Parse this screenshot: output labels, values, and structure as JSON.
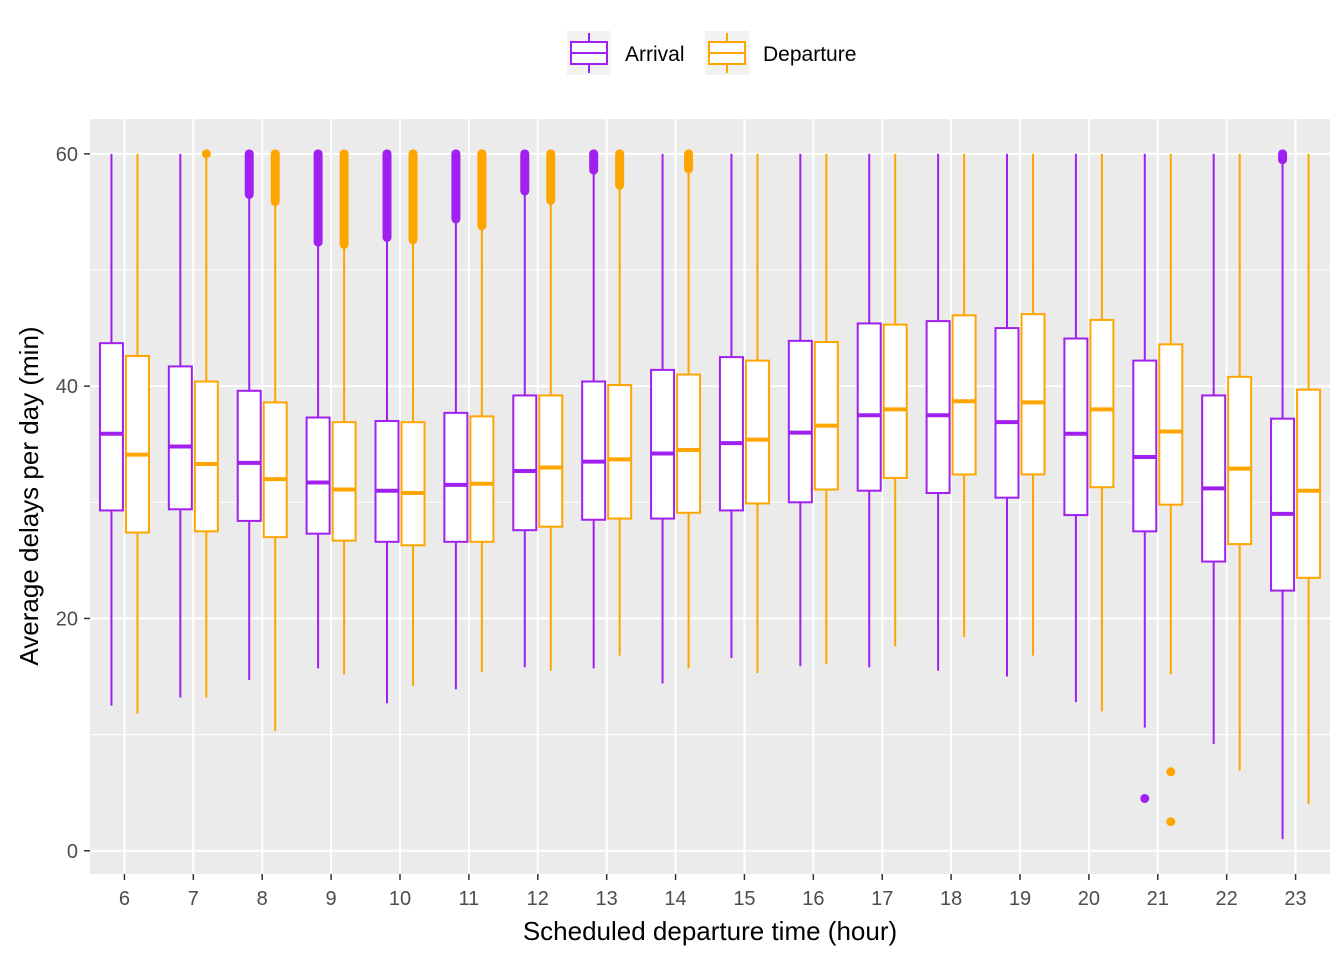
{
  "chart_data": {
    "type": "boxplot",
    "xlabel": "Scheduled departure time (hour)",
    "ylabel": "Average delays per day (min)",
    "ylim": [
      -2,
      63
    ],
    "yticks": [
      0,
      20,
      40,
      60
    ],
    "grid": true,
    "legend_position": "top",
    "categories": [
      "6",
      "7",
      "8",
      "9",
      "10",
      "11",
      "12",
      "13",
      "14",
      "15",
      "16",
      "17",
      "18",
      "19",
      "20",
      "21",
      "22",
      "23"
    ],
    "series": [
      {
        "name": "Arrival",
        "color": "#A020F0",
        "boxes": [
          {
            "whisker_low": 12.5,
            "q1": 29.3,
            "median": 35.9,
            "q3": 43.7,
            "whisker_high": 60,
            "outliers": []
          },
          {
            "whisker_low": 13.2,
            "q1": 29.4,
            "median": 34.8,
            "q3": 41.7,
            "whisker_high": 60,
            "outliers": []
          },
          {
            "whisker_low": 14.7,
            "q1": 28.4,
            "median": 33.4,
            "q3": 39.6,
            "whisker_high": 56.5,
            "outliers": [
              56.5,
              60
            ]
          },
          {
            "whisker_low": 15.7,
            "q1": 27.3,
            "median": 31.7,
            "q3": 37.3,
            "whisker_high": 52.4,
            "outliers": [
              52.4,
              60
            ]
          },
          {
            "whisker_low": 12.7,
            "q1": 26.6,
            "median": 31.0,
            "q3": 37.0,
            "whisker_high": 52.8,
            "outliers": [
              52.8,
              60
            ]
          },
          {
            "whisker_low": 13.9,
            "q1": 26.6,
            "median": 31.5,
            "q3": 37.7,
            "whisker_high": 54.4,
            "outliers": [
              54.4,
              60
            ]
          },
          {
            "whisker_low": 15.8,
            "q1": 27.6,
            "median": 32.7,
            "q3": 39.2,
            "whisker_high": 56.8,
            "outliers": [
              56.8,
              60
            ]
          },
          {
            "whisker_low": 15.7,
            "q1": 28.5,
            "median": 33.5,
            "q3": 40.4,
            "whisker_high": 58.6,
            "outliers": [
              58.6,
              60
            ]
          },
          {
            "whisker_low": 14.4,
            "q1": 28.6,
            "median": 34.2,
            "q3": 41.4,
            "whisker_high": 60,
            "outliers": []
          },
          {
            "whisker_low": 16.6,
            "q1": 29.3,
            "median": 35.1,
            "q3": 42.5,
            "whisker_high": 60,
            "outliers": []
          },
          {
            "whisker_low": 15.9,
            "q1": 30.0,
            "median": 36.0,
            "q3": 43.9,
            "whisker_high": 60,
            "outliers": []
          },
          {
            "whisker_low": 15.8,
            "q1": 31.0,
            "median": 37.5,
            "q3": 45.4,
            "whisker_high": 60,
            "outliers": []
          },
          {
            "whisker_low": 15.5,
            "q1": 30.8,
            "median": 37.5,
            "q3": 45.6,
            "whisker_high": 60,
            "outliers": []
          },
          {
            "whisker_low": 15.0,
            "q1": 30.4,
            "median": 36.9,
            "q3": 45.0,
            "whisker_high": 60,
            "outliers": []
          },
          {
            "whisker_low": 12.8,
            "q1": 28.9,
            "median": 35.9,
            "q3": 44.1,
            "whisker_high": 60,
            "outliers": []
          },
          {
            "whisker_low": 10.6,
            "q1": 27.5,
            "median": 33.9,
            "q3": 42.2,
            "whisker_high": 60,
            "outliers": [
              4.5
            ]
          },
          {
            "whisker_low": 9.2,
            "q1": 24.9,
            "median": 31.2,
            "q3": 39.2,
            "whisker_high": 60,
            "outliers": []
          },
          {
            "whisker_low": 1.0,
            "q1": 22.4,
            "median": 29.0,
            "q3": 37.2,
            "whisker_high": 59.5,
            "outliers": [
              59.5,
              60
            ]
          }
        ]
      },
      {
        "name": "Departure",
        "color": "#FFA500",
        "boxes": [
          {
            "whisker_low": 11.8,
            "q1": 27.4,
            "median": 34.1,
            "q3": 42.6,
            "whisker_high": 60,
            "outliers": []
          },
          {
            "whisker_low": 13.2,
            "q1": 27.5,
            "median": 33.3,
            "q3": 40.4,
            "whisker_high": 60,
            "outliers": [
              60
            ]
          },
          {
            "whisker_low": 10.3,
            "q1": 27.0,
            "median": 32.0,
            "q3": 38.6,
            "whisker_high": 55.9,
            "outliers": [
              55.9,
              60
            ]
          },
          {
            "whisker_low": 15.2,
            "q1": 26.7,
            "median": 31.1,
            "q3": 36.9,
            "whisker_high": 52.2,
            "outliers": [
              52.2,
              60
            ]
          },
          {
            "whisker_low": 14.2,
            "q1": 26.3,
            "median": 30.8,
            "q3": 36.9,
            "whisker_high": 52.6,
            "outliers": [
              52.6,
              60
            ]
          },
          {
            "whisker_low": 15.4,
            "q1": 26.6,
            "median": 31.6,
            "q3": 37.4,
            "whisker_high": 53.8,
            "outliers": [
              53.8,
              60
            ]
          },
          {
            "whisker_low": 15.5,
            "q1": 27.9,
            "median": 33.0,
            "q3": 39.2,
            "whisker_high": 56.0,
            "outliers": [
              56.0,
              60
            ]
          },
          {
            "whisker_low": 16.8,
            "q1": 28.6,
            "median": 33.7,
            "q3": 40.1,
            "whisker_high": 57.3,
            "outliers": [
              57.3,
              60
            ]
          },
          {
            "whisker_low": 15.7,
            "q1": 29.1,
            "median": 34.5,
            "q3": 41.0,
            "whisker_high": 58.7,
            "outliers": [
              58.7,
              60
            ]
          },
          {
            "whisker_low": 15.3,
            "q1": 29.9,
            "median": 35.4,
            "q3": 42.2,
            "whisker_high": 60,
            "outliers": []
          },
          {
            "whisker_low": 16.1,
            "q1": 31.1,
            "median": 36.6,
            "q3": 43.8,
            "whisker_high": 60,
            "outliers": []
          },
          {
            "whisker_low": 17.6,
            "q1": 32.1,
            "median": 38.0,
            "q3": 45.3,
            "whisker_high": 60,
            "outliers": []
          },
          {
            "whisker_low": 18.4,
            "q1": 32.4,
            "median": 38.7,
            "q3": 46.1,
            "whisker_high": 60,
            "outliers": []
          },
          {
            "whisker_low": 16.8,
            "q1": 32.4,
            "median": 38.6,
            "q3": 46.2,
            "whisker_high": 60,
            "outliers": []
          },
          {
            "whisker_low": 12.0,
            "q1": 31.3,
            "median": 38.0,
            "q3": 45.7,
            "whisker_high": 60,
            "outliers": []
          },
          {
            "whisker_low": 15.2,
            "q1": 29.8,
            "median": 36.1,
            "q3": 43.6,
            "whisker_high": 60,
            "outliers": [
              6.8,
              2.5
            ]
          },
          {
            "whisker_low": 6.9,
            "q1": 26.4,
            "median": 32.9,
            "q3": 40.8,
            "whisker_high": 60,
            "outliers": []
          },
          {
            "whisker_low": 4.0,
            "q1": 23.5,
            "median": 31.0,
            "q3": 39.7,
            "whisker_high": 60,
            "outliers": []
          }
        ]
      }
    ]
  }
}
